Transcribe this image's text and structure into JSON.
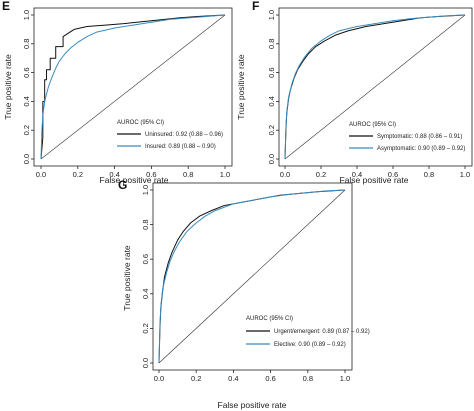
{
  "chart_data": [
    {
      "panel": "E",
      "type": "line",
      "xlabel": "False positive rate",
      "ylabel": "True positive rate",
      "xlim": [
        0,
        1
      ],
      "ylim": [
        0,
        1
      ],
      "x_ticks": [
        "0.0",
        "0.2",
        "0.4",
        "0.6",
        "0.8",
        "1.0"
      ],
      "y_ticks": [
        "0.0",
        "0.2",
        "0.4",
        "0.6",
        "0.8",
        "1.0"
      ],
      "legend_title": "AUROC (95% CI)",
      "legend_position": "bottom-right",
      "grid": false,
      "series": [
        {
          "name": "Uninsured: 0.92 (0.88 – 0.96)",
          "color": "#111111",
          "x": [
            0,
            0.01,
            0.01,
            0.02,
            0.02,
            0.03,
            0.03,
            0.05,
            0.05,
            0.08,
            0.08,
            0.12,
            0.12,
            0.18,
            0.25,
            0.35,
            0.45,
            0.6,
            0.75,
            0.85,
            1.0
          ],
          "y": [
            0,
            0.15,
            0.4,
            0.4,
            0.55,
            0.55,
            0.62,
            0.62,
            0.7,
            0.7,
            0.78,
            0.78,
            0.85,
            0.9,
            0.92,
            0.93,
            0.94,
            0.96,
            0.98,
            0.99,
            1.0
          ]
        },
        {
          "name": "Insured: 0.89 (0.88 – 0.90)",
          "color": "#3a8bc0",
          "x": [
            0,
            0.005,
            0.01,
            0.02,
            0.04,
            0.06,
            0.08,
            0.1,
            0.13,
            0.16,
            0.2,
            0.25,
            0.3,
            0.4,
            0.5,
            0.6,
            0.7,
            0.8,
            0.9,
            1.0
          ],
          "y": [
            0,
            0.2,
            0.3,
            0.4,
            0.5,
            0.57,
            0.63,
            0.68,
            0.73,
            0.77,
            0.81,
            0.85,
            0.88,
            0.91,
            0.93,
            0.95,
            0.97,
            0.98,
            0.99,
            1.0
          ]
        },
        {
          "name": "",
          "color": "#333333",
          "role": "reference",
          "x": [
            0,
            1
          ],
          "y": [
            0,
            1
          ]
        }
      ]
    },
    {
      "panel": "F",
      "type": "line",
      "xlabel": "False positive rate",
      "ylabel": "True positive rate",
      "xlim": [
        0,
        1
      ],
      "ylim": [
        0,
        1
      ],
      "x_ticks": [
        "0.0",
        "0.2",
        "0.4",
        "0.6",
        "0.8",
        "1.0"
      ],
      "y_ticks": [
        "0.0",
        "0.2",
        "0.4",
        "0.6",
        "0.8",
        "1.0"
      ],
      "legend_title": "AUROC (95% CI)",
      "legend_position": "bottom-right",
      "grid": false,
      "series": [
        {
          "name": "Symptomatic: 0.88 (0.86 – 0.91)",
          "color": "#111111",
          "x": [
            0,
            0.005,
            0.01,
            0.02,
            0.03,
            0.05,
            0.07,
            0.1,
            0.13,
            0.17,
            0.22,
            0.28,
            0.35,
            0.45,
            0.55,
            0.65,
            0.75,
            0.85,
            1.0
          ],
          "y": [
            0,
            0.2,
            0.32,
            0.42,
            0.48,
            0.56,
            0.62,
            0.68,
            0.73,
            0.78,
            0.82,
            0.86,
            0.89,
            0.92,
            0.94,
            0.96,
            0.98,
            0.99,
            1.0
          ]
        },
        {
          "name": "Asymptomatic: 0.90 (0.89 – 0.92)",
          "color": "#3a8bc0",
          "x": [
            0,
            0.005,
            0.01,
            0.02,
            0.04,
            0.06,
            0.08,
            0.11,
            0.15,
            0.2,
            0.25,
            0.3,
            0.4,
            0.5,
            0.6,
            0.7,
            0.8,
            0.9,
            1.0
          ],
          "y": [
            0,
            0.22,
            0.33,
            0.43,
            0.53,
            0.6,
            0.65,
            0.71,
            0.77,
            0.82,
            0.86,
            0.89,
            0.92,
            0.94,
            0.96,
            0.975,
            0.985,
            0.995,
            1.0
          ]
        },
        {
          "name": "",
          "color": "#333333",
          "role": "reference",
          "x": [
            0,
            1
          ],
          "y": [
            0,
            1
          ]
        }
      ]
    },
    {
      "panel": "G",
      "type": "line",
      "xlabel": "False positive rate",
      "ylabel": "True positive rate",
      "xlim": [
        0,
        1
      ],
      "ylim": [
        0,
        1
      ],
      "x_ticks": [
        "0.0",
        "0.2",
        "0.4",
        "0.6",
        "0.8",
        "1.0"
      ],
      "y_ticks": [
        "0.0",
        "0.2",
        "0.4",
        "0.6",
        "0.8",
        "1.0"
      ],
      "legend_title": "AUROC (95% CI)",
      "legend_position": "bottom-right",
      "grid": false,
      "series": [
        {
          "name": "Urgent/emergent: 0.89 (0.87 – 0.92)",
          "color": "#111111",
          "x": [
            0,
            0.005,
            0.01,
            0.02,
            0.03,
            0.05,
            0.07,
            0.1,
            0.13,
            0.17,
            0.22,
            0.28,
            0.35,
            0.45,
            0.55,
            0.65,
            0.75,
            0.85,
            1.0
          ],
          "y": [
            0,
            0.2,
            0.32,
            0.42,
            0.5,
            0.58,
            0.64,
            0.71,
            0.76,
            0.81,
            0.85,
            0.88,
            0.91,
            0.93,
            0.95,
            0.97,
            0.98,
            0.99,
            1.0
          ]
        },
        {
          "name": "Elective: 0.90 (0.89 – 0.92)",
          "color": "#3a8bc0",
          "x": [
            0,
            0.005,
            0.01,
            0.02,
            0.04,
            0.06,
            0.08,
            0.11,
            0.15,
            0.2,
            0.25,
            0.3,
            0.4,
            0.5,
            0.6,
            0.7,
            0.8,
            0.9,
            1.0
          ],
          "y": [
            0,
            0.22,
            0.33,
            0.43,
            0.52,
            0.59,
            0.64,
            0.7,
            0.76,
            0.81,
            0.85,
            0.88,
            0.92,
            0.94,
            0.96,
            0.975,
            0.985,
            0.995,
            1.0
          ]
        },
        {
          "name": "",
          "color": "#333333",
          "role": "reference",
          "x": [
            0,
            1
          ],
          "y": [
            0,
            1
          ]
        }
      ]
    }
  ]
}
